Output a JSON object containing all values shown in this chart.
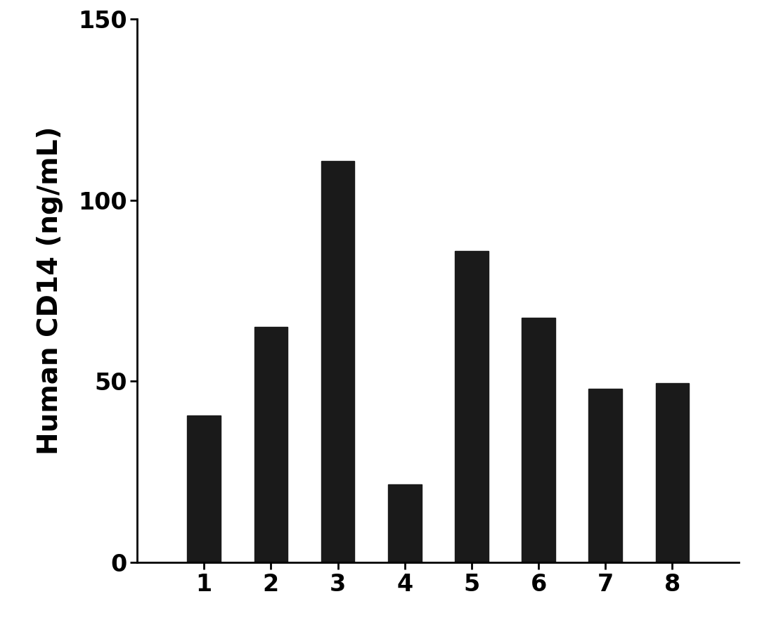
{
  "categories": [
    1,
    2,
    3,
    4,
    5,
    6,
    7,
    8
  ],
  "values": [
    40.5,
    65.0,
    110.8,
    21.5,
    86.0,
    67.5,
    48.0,
    49.5
  ],
  "bar_color": "#1a1a1a",
  "ylabel": "Human CD14 (ng/mL)",
  "ylim": [
    0,
    150
  ],
  "yticks": [
    0,
    50,
    100,
    150
  ],
  "background_color": "#ffffff",
  "bar_width": 0.5,
  "ylabel_fontsize": 28,
  "tick_fontsize": 24,
  "xlim": [
    0.0,
    9.0
  ]
}
